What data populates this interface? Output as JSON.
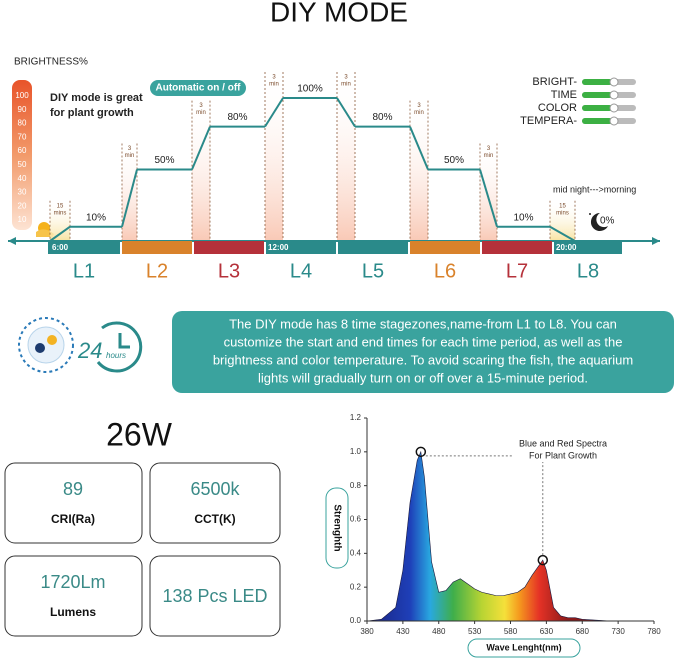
{
  "title": "DIY MODE",
  "chart_data": [
    {
      "type": "step",
      "y_label": "BRIGHTNESS%",
      "note": [
        "DIY mode is great",
        "for plant growth"
      ],
      "badge": "Automatic on / off",
      "legend": [
        "BRIGHT-",
        "TIME",
        "COLOR",
        "TEMPERA-"
      ],
      "annotation": "mid night--->morning",
      "categories": [
        "L1",
        "L2",
        "L3",
        "L4",
        "L5",
        "L6",
        "L7",
        "L8"
      ],
      "values": [
        10,
        50,
        80,
        100,
        80,
        50,
        10,
        0
      ],
      "value_labels": [
        "10%",
        "50%",
        "80%",
        "100%",
        "80%",
        "50%",
        "10%",
        "0%"
      ],
      "colors": [
        "#2a8a8a",
        "#d9822b",
        "#b5313a",
        "#2a8a8a",
        "#2a8a8a",
        "#d9822b",
        "#b5313a",
        "#2a8a8a"
      ],
      "line_color": "#2a8a8a",
      "ylim": [
        0,
        100
      ],
      "yticks": [
        10,
        20,
        30,
        40,
        50,
        60,
        70,
        80,
        90,
        100
      ],
      "time_labels": [
        "6:00",
        "12:00",
        "20:00"
      ],
      "ramp_labels": [
        [
          "15",
          "mins"
        ],
        [
          "3",
          "min"
        ],
        [
          "3",
          "min"
        ],
        [
          "3",
          "min"
        ],
        [
          "3",
          "min"
        ],
        [
          "3",
          "min"
        ],
        [
          "3",
          "min"
        ],
        [
          "15",
          "mins"
        ]
      ]
    },
    {
      "type": "area",
      "x_label": "Wave Lenght(nm)",
      "y_label": "Strenghth",
      "annotation": [
        "Blue and Red Spectra",
        "For Plant Growth"
      ],
      "x": [
        380,
        400,
        420,
        430,
        440,
        450,
        455,
        460,
        470,
        480,
        490,
        500,
        510,
        520,
        530,
        540,
        550,
        560,
        570,
        580,
        590,
        600,
        610,
        620,
        625,
        630,
        640,
        650,
        660,
        670,
        680,
        700,
        720,
        740,
        780
      ],
      "values": [
        0,
        0.01,
        0.08,
        0.3,
        0.7,
        0.95,
        1.0,
        0.85,
        0.35,
        0.17,
        0.18,
        0.23,
        0.25,
        0.22,
        0.19,
        0.17,
        0.16,
        0.15,
        0.15,
        0.16,
        0.17,
        0.2,
        0.27,
        0.33,
        0.36,
        0.3,
        0.08,
        0.03,
        0.02,
        0.02,
        0.01,
        0.005,
        0,
        0,
        0
      ],
      "xlim": [
        380,
        780
      ],
      "xticks": [
        380,
        430,
        480,
        530,
        580,
        630,
        680,
        730,
        780
      ],
      "ylim": [
        0,
        1.2
      ],
      "yticks": [
        {
          "value": 0,
          "label": "0.0"
        },
        0.2,
        0.4,
        0.6,
        0.8,
        {
          "value": 1,
          "label": "1.0"
        },
        1.2
      ]
    }
  ],
  "info": {
    "icon_number": "24",
    "icon_unit": "hours",
    "lines": [
      "The DIY mode has 8 time stagezones,name-from L1 to L8. You can",
      "customize the start and end times for each time period, as well as the",
      "brightness and color temperature. To avoid scaring the fish, the aquarium",
      "lights will gradually turn on or off over a 15-minute period."
    ]
  },
  "specs": {
    "power": "26W",
    "cards": [
      {
        "value": "89",
        "label": "CRI(Ra)"
      },
      {
        "value": "6500k",
        "label": "CCT(K)"
      },
      {
        "value": "1720Lm",
        "label": "Lumens"
      },
      {
        "value": "138 Pcs LED"
      }
    ]
  }
}
